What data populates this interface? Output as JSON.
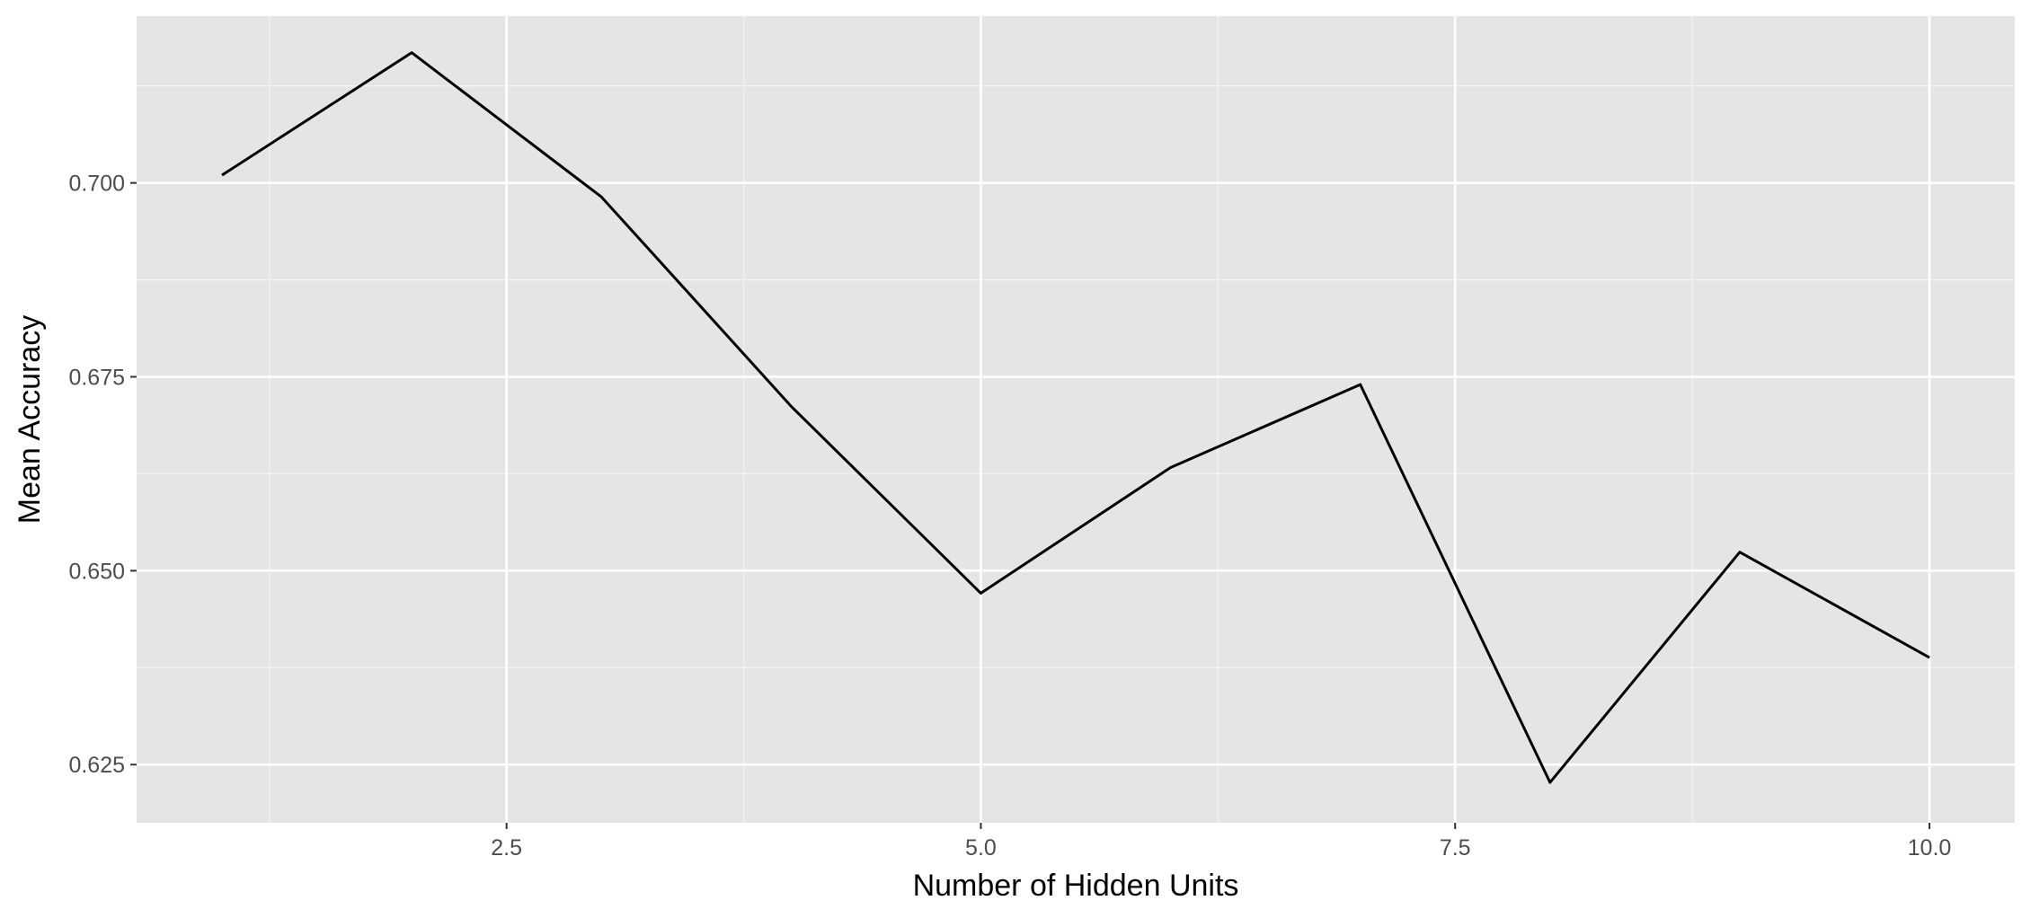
{
  "chart_data": {
    "type": "line",
    "title": "",
    "xlabel": "Number of Hidden Units",
    "ylabel": "Mean Accuracy",
    "x": [
      1,
      2,
      3,
      4,
      5,
      6,
      7,
      8,
      9,
      10
    ],
    "series": [
      {
        "values": [
          0.701,
          0.7168,
          0.6982,
          0.6712,
          0.6471,
          0.6633,
          0.674,
          0.6227,
          0.6524,
          0.6388
        ]
      }
    ],
    "xlim": [
      0.55,
      10.45
    ],
    "ylim": [
      0.6175,
      0.7215
    ],
    "x_ticks": [
      2.5,
      5.0,
      7.5,
      10.0
    ],
    "x_tick_labels": [
      "2.5",
      "5.0",
      "7.5",
      "10.0"
    ],
    "y_ticks": [
      0.625,
      0.65,
      0.675,
      0.7
    ],
    "y_tick_labels": [
      "0.625",
      "0.650",
      "0.675",
      "0.700"
    ],
    "grid": true,
    "legend": "none",
    "colors": {
      "panel_background": "#e5e5e5",
      "grid_major": "#ffffff",
      "grid_minor": "#f2f2f2",
      "line": "#000000",
      "tick_label": "#4d4d4d"
    }
  }
}
